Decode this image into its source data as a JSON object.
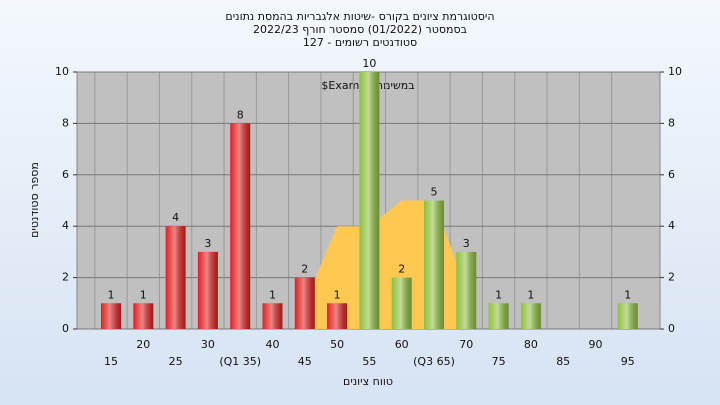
{
  "chart_data": {
    "type": "bar",
    "title": [
      "היסטוגרמת ציונים בקורס -שיטות אלגבריות בהמסת נתונים",
      "בסמסטר  (01/2022)  סמסטר חורף 2022/23",
      "סטודנטים רשומים - 127"
    ],
    "subtitle": "$Exam_B במשימה",
    "x_label": "טווח ציונים",
    "y_label": "מספר סטודנטים",
    "categories": [
      "15",
      "20",
      "25",
      "30",
      "(Q1 35)",
      "40",
      "45",
      "50",
      "55",
      "60",
      "(Q3 65)",
      "70",
      "75",
      "80",
      "85",
      "90",
      "95"
    ],
    "values": [
      1,
      1,
      4,
      3,
      8,
      1,
      2,
      1,
      10,
      2,
      5,
      3,
      1,
      1,
      0,
      0,
      1
    ],
    "colors": [
      "#e02020",
      "#e02020",
      "#e02020",
      "#e02020",
      "#e02020",
      "#e02020",
      "#e02020",
      "#e02020",
      "#8fbf40",
      "#8fbf40",
      "#8fbf40",
      "#8fbf40",
      "#8fbf40",
      "#8fbf40",
      "#8fbf40",
      "#8fbf40",
      "#8fbf40"
    ],
    "area": {
      "color": "#ffc850",
      "values": [
        null,
        null,
        null,
        null,
        8,
        null,
        1,
        4,
        4,
        5,
        5,
        1.5,
        null,
        null,
        null,
        null,
        null
      ]
    },
    "ylim": [
      0,
      10
    ],
    "yticks": [
      0,
      2,
      4,
      6,
      8,
      10
    ],
    "grid": true
  }
}
